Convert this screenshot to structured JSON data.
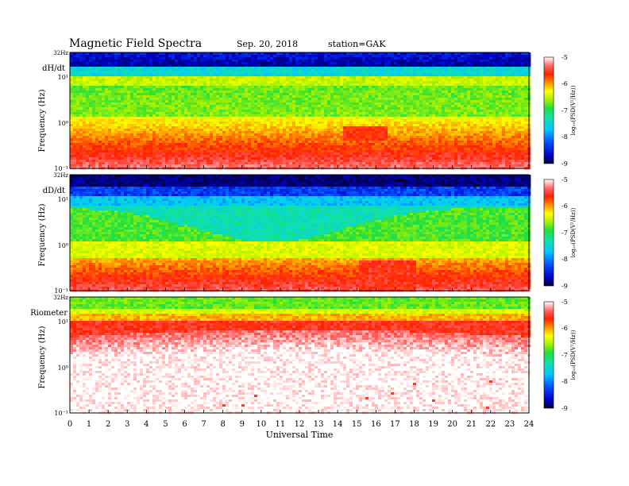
{
  "header": {
    "title": "Magnetic  Field  Spectra",
    "date": "Sep. 20, 2018",
    "station": "station=GAK"
  },
  "colors": {
    "colormap": [
      "#000040",
      "#0000c8",
      "#0050ff",
      "#00c8ff",
      "#10e0b0",
      "#20e040",
      "#a8f000",
      "#ffff00",
      "#ff9000",
      "#ff2000",
      "#ff6a6a",
      "#ffffff"
    ]
  },
  "chart_data": [
    {
      "type": "heatmap",
      "panel_label": "dH/dt",
      "top_label": "32Hz",
      "ylabel": "Frequency  (Hz)",
      "y_ticks": [
        "10¹",
        "10⁰",
        "10⁻¹"
      ],
      "y_scale": "log",
      "ylim": [
        0.1,
        32
      ],
      "xlim": [
        0,
        24
      ],
      "color_scale": {
        "ticks": [
          "-5",
          "-6",
          "-7",
          "-8",
          "-9"
        ],
        "range": [
          -9,
          -5
        ],
        "label": "log₁₀(PSD(V²/Hz))"
      }
    },
    {
      "type": "heatmap",
      "panel_label": "dD/dt",
      "top_label": "32Hz",
      "ylabel": "Frequency  (Hz)",
      "y_ticks": [
        "10¹",
        "10⁰",
        "10⁻¹"
      ],
      "y_scale": "log",
      "ylim": [
        0.1,
        32
      ],
      "xlim": [
        0,
        24
      ],
      "color_scale": {
        "ticks": [
          "-5",
          "-6",
          "-7",
          "-8",
          "-9"
        ],
        "range": [
          -9,
          -5
        ],
        "label": "log₁₀(PSD(V²/Hz))"
      }
    },
    {
      "type": "heatmap",
      "panel_label": "Riometer",
      "top_label": "32Hz",
      "ylabel": "Frequency  (Hz)",
      "y_ticks": [
        "10¹",
        "10⁰",
        "10⁻¹"
      ],
      "y_scale": "log",
      "ylim": [
        0.1,
        32
      ],
      "xlim": [
        0,
        24
      ],
      "x_ticks": [
        "0",
        "1",
        "2",
        "3",
        "4",
        "5",
        "6",
        "7",
        "8",
        "9",
        "10",
        "11",
        "12",
        "13",
        "14",
        "15",
        "16",
        "17",
        "18",
        "19",
        "20",
        "21",
        "22",
        "23",
        "24"
      ],
      "xlabel": "Universal  Time",
      "color_scale": {
        "ticks": [
          "-5",
          "-6",
          "-7",
          "-8",
          "-9"
        ],
        "range": [
          -9,
          -5
        ],
        "label": "log₁₀(PSD(V²/Hz))"
      }
    }
  ]
}
